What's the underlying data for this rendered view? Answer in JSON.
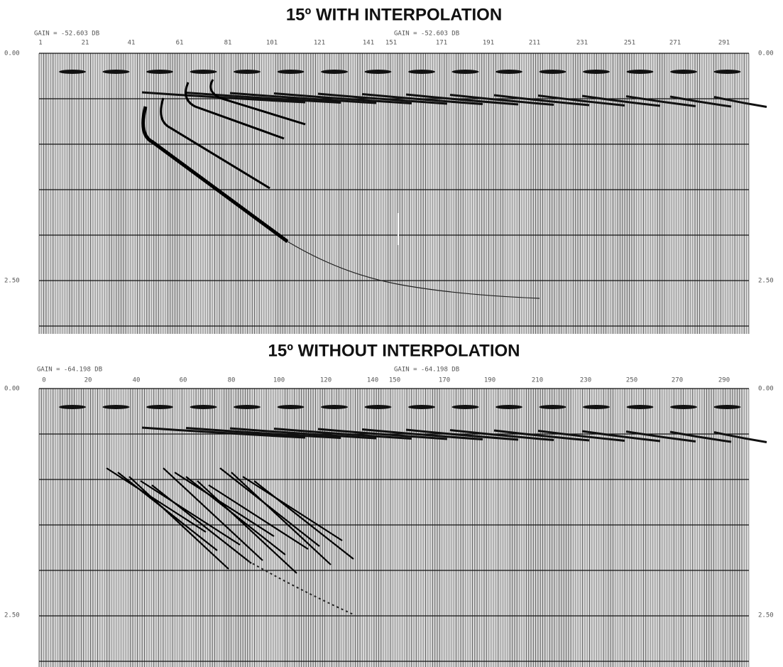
{
  "panels": [
    {
      "title": "15º WITH INTERPOLATION",
      "gain_left": "GAIN = -52.603 DB",
      "gain_center": "GAIN = -52.603 DB",
      "trace_labels": [
        "1",
        "21",
        "41",
        "61",
        "81",
        "101",
        "121",
        "141",
        "151",
        "171",
        "191",
        "211",
        "231",
        "251",
        "271",
        "291"
      ],
      "time_labels_left": [
        "0.00",
        "2.50"
      ],
      "time_labels_right": [
        "0.00",
        "2.50"
      ]
    },
    {
      "title": "15º WITHOUT INTERPOLATION",
      "gain_left": "GAIN = -64.198 DB",
      "gain_center": "GAIN = -64.198 DB",
      "trace_labels": [
        "0",
        "20",
        "40",
        "60",
        "80",
        "100",
        "120",
        "140",
        "150",
        "170",
        "190",
        "210",
        "230",
        "250",
        "270",
        "290"
      ],
      "time_labels_left": [
        "0.00",
        "2.50"
      ],
      "time_labels_right": [
        "0.00",
        "2.50"
      ]
    }
  ]
}
